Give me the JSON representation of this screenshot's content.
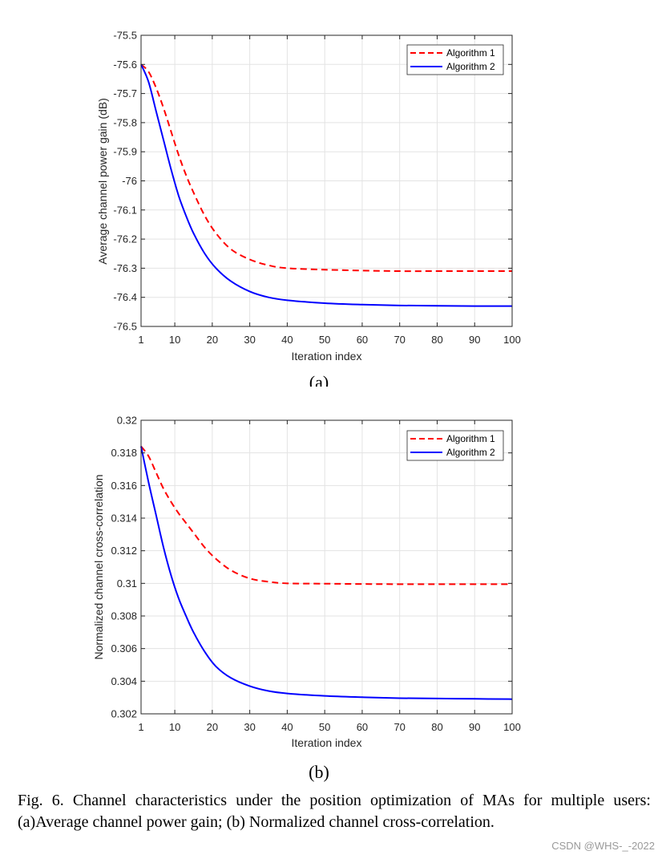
{
  "chart_data": [
    {
      "type": "line",
      "subfigure_label": "(a)",
      "xlabel": "Iteration index",
      "ylabel": "Average channel power gain (dB)",
      "xlim": [
        1,
        100
      ],
      "ylim": [
        -76.5,
        -75.5
      ],
      "xticks": [
        1,
        10,
        20,
        30,
        40,
        50,
        60,
        70,
        80,
        90,
        100
      ],
      "xtick_labels": [
        "1",
        "10",
        "20",
        "30",
        "40",
        "50",
        "60",
        "70",
        "80",
        "90",
        "100"
      ],
      "yticks": [
        -75.5,
        -75.6,
        -75.7,
        -75.8,
        -75.9,
        -76,
        -76.1,
        -76.2,
        -76.3,
        -76.4,
        -76.5
      ],
      "ytick_labels": [
        "-75.5",
        "-75.6",
        "-75.7",
        "-75.8",
        "-75.9",
        "-76",
        "-76.1",
        "-76.2",
        "-76.3",
        "-76.4",
        "-76.5"
      ],
      "grid": true,
      "legend_position": "top-right",
      "series": [
        {
          "name": "Algorithm 1",
          "color": "#ff0000",
          "style": "dashed",
          "x": [
            1,
            3,
            5,
            7,
            9,
            11,
            13,
            15,
            18,
            21,
            25,
            30,
            35,
            40,
            50,
            60,
            70,
            80,
            90,
            100
          ],
          "y": [
            -75.6,
            -75.625,
            -75.68,
            -75.75,
            -75.83,
            -75.91,
            -75.98,
            -76.04,
            -76.12,
            -76.18,
            -76.235,
            -76.27,
            -76.29,
            -76.3,
            -76.305,
            -76.308,
            -76.31,
            -76.31,
            -76.31,
            -76.31
          ]
        },
        {
          "name": "Algorithm 2",
          "color": "#0000ff",
          "style": "solid",
          "x": [
            1,
            3,
            5,
            7,
            9,
            11,
            13,
            15,
            18,
            21,
            25,
            30,
            35,
            40,
            50,
            60,
            70,
            80,
            90,
            100
          ],
          "y": [
            -75.6,
            -75.66,
            -75.76,
            -75.86,
            -75.96,
            -76.05,
            -76.12,
            -76.18,
            -76.25,
            -76.3,
            -76.345,
            -76.38,
            -76.4,
            -76.41,
            -76.42,
            -76.425,
            -76.428,
            -76.429,
            -76.43,
            -76.43
          ]
        }
      ]
    },
    {
      "type": "line",
      "subfigure_label": "(b)",
      "xlabel": "Iteration index",
      "ylabel": "Normalized channel cross-correlation",
      "xlim": [
        1,
        100
      ],
      "ylim": [
        0.302,
        0.32
      ],
      "xticks": [
        1,
        10,
        20,
        30,
        40,
        50,
        60,
        70,
        80,
        90,
        100
      ],
      "xtick_labels": [
        "1",
        "10",
        "20",
        "30",
        "40",
        "50",
        "60",
        "70",
        "80",
        "90",
        "100"
      ],
      "yticks": [
        0.32,
        0.318,
        0.316,
        0.314,
        0.312,
        0.31,
        0.308,
        0.306,
        0.304,
        0.302
      ],
      "ytick_labels": [
        "0.32",
        "0.318",
        "0.316",
        "0.314",
        "0.312",
        "0.31",
        "0.308",
        "0.306",
        "0.304",
        "0.302"
      ],
      "grid": true,
      "legend_position": "top-right",
      "series": [
        {
          "name": "Algorithm 1",
          "color": "#ff0000",
          "style": "dashed",
          "x": [
            1,
            3,
            5,
            7,
            9,
            11,
            13,
            15,
            18,
            21,
            25,
            30,
            35,
            40,
            50,
            60,
            70,
            80,
            90,
            100
          ],
          "y": [
            0.3184,
            0.3178,
            0.3168,
            0.3158,
            0.315,
            0.3143,
            0.3137,
            0.3131,
            0.3122,
            0.3115,
            0.3108,
            0.3103,
            0.3101,
            0.31,
            0.30998,
            0.30996,
            0.30995,
            0.30995,
            0.30995,
            0.30995
          ]
        },
        {
          "name": "Algorithm 2",
          "color": "#0000ff",
          "style": "solid",
          "x": [
            1,
            3,
            5,
            7,
            9,
            11,
            13,
            15,
            18,
            21,
            25,
            30,
            35,
            40,
            50,
            60,
            70,
            80,
            90,
            100
          ],
          "y": [
            0.3184,
            0.3162,
            0.3142,
            0.3122,
            0.3105,
            0.3091,
            0.308,
            0.307,
            0.3058,
            0.3049,
            0.3042,
            0.3037,
            0.3034,
            0.30325,
            0.3031,
            0.30302,
            0.30296,
            0.30294,
            0.30292,
            0.3029
          ]
        }
      ]
    }
  ],
  "caption": "Fig. 6.  Channel characteristics under the position optimization of MAs for multiple users: (a)Average channel power gain; (b) Normalized channel cross-correlation.",
  "watermark": "CSDN @WHS-_-2022"
}
